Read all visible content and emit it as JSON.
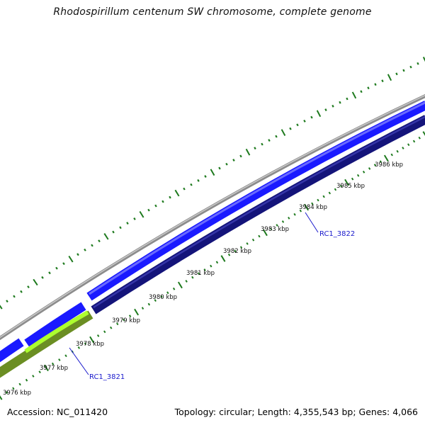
{
  "title": "Rhodospirillum centenum SW chromosome, complete genome",
  "footer": {
    "accession": "Accession: NC_011420",
    "summary": "Topology: circular; Length: 4,355,543 bp; Genes: 4,066"
  },
  "colors": {
    "backbone": "#8c8c8c",
    "forward_gene": "#1a1aff",
    "reverse_gene": "#14147a",
    "rna_gene_light": "#adff2f",
    "rna_gene_dark": "#6b8e23",
    "tick": "#1e7a1e",
    "label": "#1a1acc"
  },
  "ruler": {
    "labels": [
      "3976 kbp",
      "3977 kbp",
      "3978 kbp",
      "3979 kbp",
      "3980 kbp",
      "3981 kbp",
      "3982 kbp",
      "3983 kbp",
      "3984 kbp",
      "3985 kbp",
      "3986 kbp"
    ]
  },
  "genes": {
    "labels": [
      "RC1_3821",
      "RC1_3822"
    ]
  }
}
